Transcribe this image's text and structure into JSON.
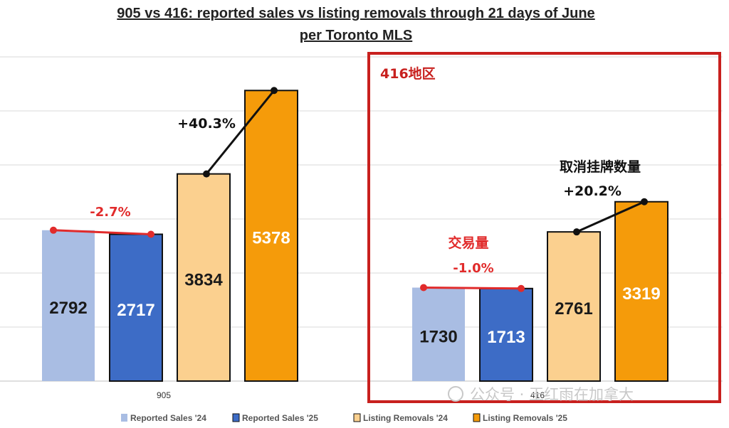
{
  "title_line1": "905 vs 416: reported sales vs listing removals through 21 days of June",
  "title_line2": "per Toronto MLS",
  "colors": {
    "reported_24": "#a9bde3",
    "reported_25": "#3d6cc6",
    "removals_24": "#fbd08f",
    "removals_25": "#f59b0a",
    "red": "#e12b2b",
    "highlight_box": "#c8201e",
    "grid": "#d9d9d9"
  },
  "chart_data": {
    "type": "bar",
    "categories": [
      "905",
      "416"
    ],
    "series": [
      {
        "name": "Reported Sales '24",
        "values": [
          2792,
          1730
        ]
      },
      {
        "name": "Reported Sales '25",
        "values": [
          2717,
          1713
        ]
      },
      {
        "name": "Listing Removals '24",
        "values": [
          3834,
          2761
        ]
      },
      {
        "name": "Listing Removals '25",
        "values": [
          5378,
          3319
        ]
      }
    ],
    "ylim": [
      0,
      6000
    ],
    "grid": true,
    "legend": "bottom",
    "annotations": {
      "sales_change": [
        "-2.7%",
        "-1.0%"
      ],
      "removals_change": [
        "+40.3%",
        "+20.2%"
      ],
      "highlight_label": "416地区",
      "sales_label_416": "交易量",
      "removals_label_416": "取消挂牌数量"
    }
  },
  "watermark": "公众号 · 王红雨在加拿大"
}
